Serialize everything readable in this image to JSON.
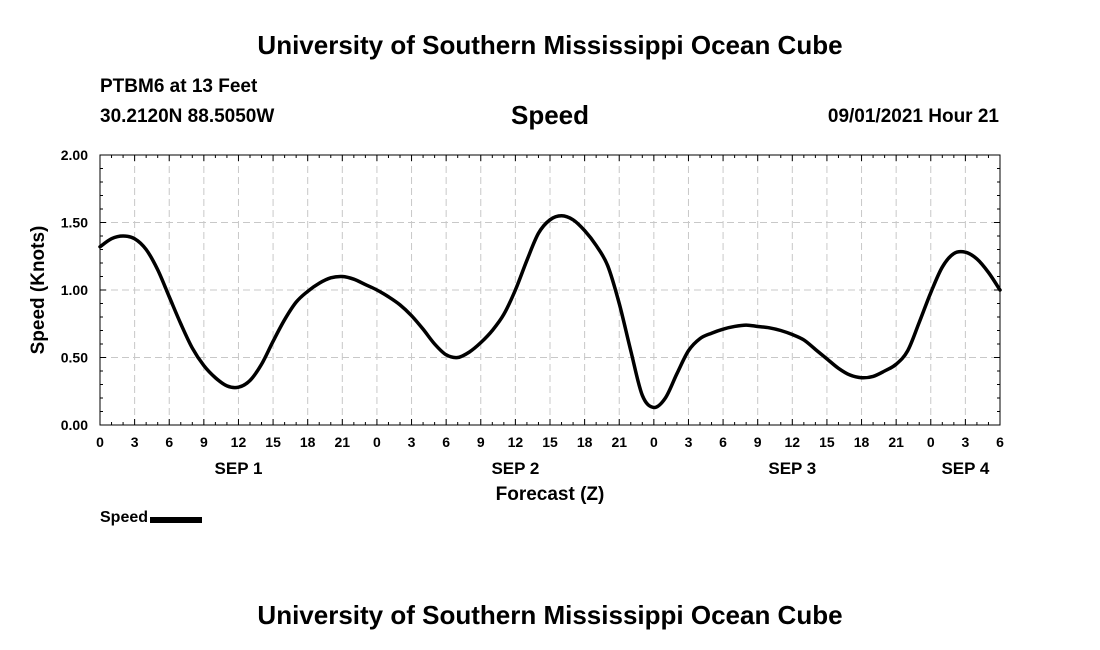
{
  "header": {
    "title": "University of Southern Mississippi Ocean Cube",
    "station": "PTBM6 at 13 Feet",
    "coords": "30.2120N  88.5050W",
    "variable": "Speed",
    "timestamp": "09/01/2021 Hour 21"
  },
  "footer": {
    "title": "University of Southern Mississippi Ocean Cube"
  },
  "legend": {
    "label": "Speed",
    "color": "#000000"
  },
  "chart_data": {
    "type": "line",
    "ylabel": "Speed (Knots)",
    "xlabel": "Forecast (Z)",
    "ylim": [
      0,
      2
    ],
    "y_ticks": [
      "0.00",
      "0.50",
      "1.00",
      "1.50",
      "2.00"
    ],
    "x_range_hours": [
      0,
      78
    ],
    "x_tick_labels": [
      "0",
      "3",
      "6",
      "9",
      "12",
      "15",
      "18",
      "21",
      "0",
      "3",
      "6",
      "9",
      "12",
      "15",
      "18",
      "21",
      "0",
      "3",
      "6",
      "9",
      "12",
      "15",
      "18",
      "21",
      "0",
      "3",
      "6"
    ],
    "date_labels": [
      {
        "label": "SEP 1",
        "hour": 12
      },
      {
        "label": "SEP 2",
        "hour": 36
      },
      {
        "label": "SEP 3",
        "hour": 60
      },
      {
        "label": "SEP 4",
        "hour": 75
      }
    ],
    "grid": true,
    "series": [
      {
        "name": "Speed",
        "color": "#000000",
        "x": [
          0,
          1,
          2,
          3,
          4,
          5,
          6,
          7,
          8,
          9,
          10,
          11,
          12,
          13,
          14,
          15,
          16,
          17,
          18,
          19,
          20,
          21,
          22,
          23,
          24,
          25,
          26,
          27,
          28,
          29,
          30,
          31,
          32,
          33,
          34,
          35,
          36,
          37,
          38,
          39,
          40,
          41,
          42,
          43,
          44,
          45,
          46,
          47,
          48,
          49,
          50,
          51,
          52,
          53,
          54,
          55,
          56,
          57,
          58,
          59,
          60,
          61,
          62,
          63,
          64,
          65,
          66,
          67,
          68,
          69,
          70,
          71,
          72,
          73,
          74,
          75,
          76,
          77,
          78
        ],
        "values": [
          1.32,
          1.38,
          1.4,
          1.38,
          1.3,
          1.15,
          0.95,
          0.75,
          0.57,
          0.44,
          0.35,
          0.29,
          0.28,
          0.33,
          0.45,
          0.62,
          0.78,
          0.91,
          0.99,
          1.05,
          1.09,
          1.1,
          1.08,
          1.04,
          1.0,
          0.95,
          0.89,
          0.81,
          0.71,
          0.6,
          0.52,
          0.5,
          0.54,
          0.61,
          0.7,
          0.82,
          1.0,
          1.22,
          1.42,
          1.52,
          1.55,
          1.52,
          1.44,
          1.33,
          1.18,
          0.9,
          0.55,
          0.22,
          0.13,
          0.2,
          0.38,
          0.55,
          0.64,
          0.68,
          0.71,
          0.73,
          0.74,
          0.73,
          0.72,
          0.7,
          0.67,
          0.63,
          0.56,
          0.49,
          0.42,
          0.37,
          0.35,
          0.36,
          0.4,
          0.45,
          0.55,
          0.76,
          0.98,
          1.17,
          1.27,
          1.28,
          1.23,
          1.13,
          1.0
        ]
      }
    ]
  }
}
